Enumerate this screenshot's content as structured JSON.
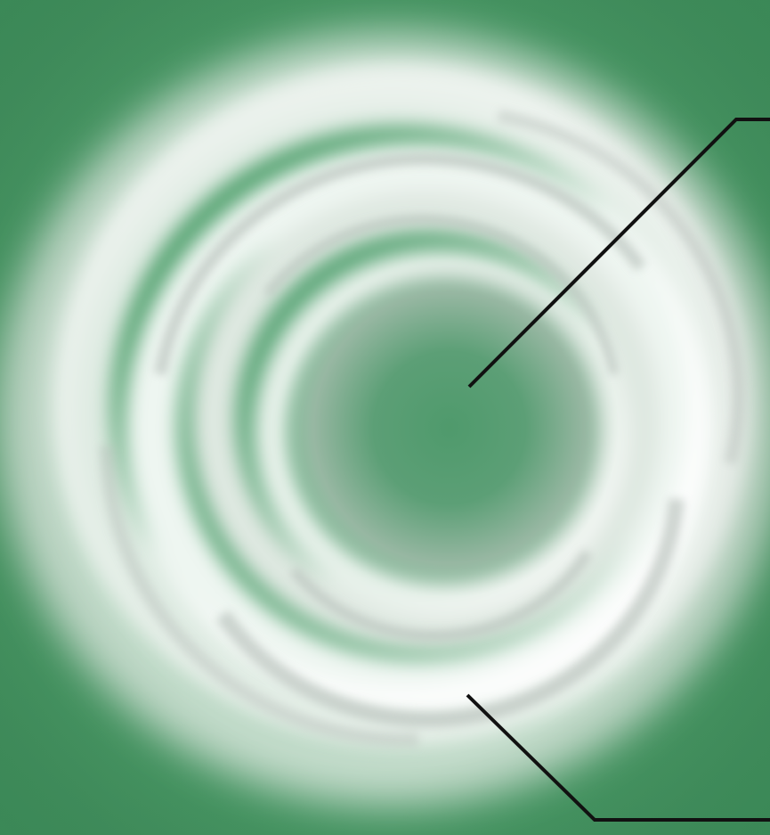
{
  "image": {
    "subject": "swirling-white-ring-on-green",
    "colors": {
      "background": "#4e9e6b",
      "background_dark": "#3f8e5c",
      "center": "#5b9e75",
      "ring_white": "#f2f5f2",
      "ring_grey": "#b9c2bc",
      "leader_line": "#111111"
    }
  }
}
